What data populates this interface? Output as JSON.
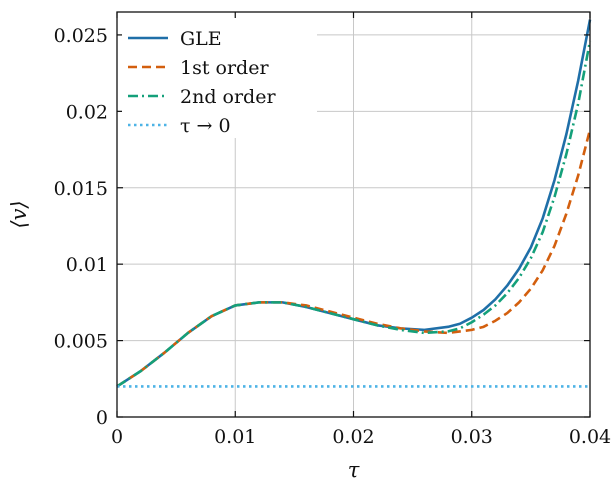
{
  "chart_data": {
    "type": "line",
    "xlabel": "τ",
    "ylabel": "⟨v⟩",
    "xlim": [
      0,
      0.04
    ],
    "ylim": [
      0,
      0.0265
    ],
    "grid": true,
    "legend_placement": "top-left",
    "x_ticks": [
      {
        "value": 0,
        "label": "0"
      },
      {
        "value": 0.01,
        "label": "0.01"
      },
      {
        "value": 0.02,
        "label": "0.02"
      },
      {
        "value": 0.03,
        "label": "0.03"
      },
      {
        "value": 0.04,
        "label": "0.04"
      }
    ],
    "y_ticks": [
      {
        "value": 0,
        "label": "0"
      },
      {
        "value": 0.005,
        "label": "0.005"
      },
      {
        "value": 0.01,
        "label": "0.01"
      },
      {
        "value": 0.015,
        "label": "0.015"
      },
      {
        "value": 0.02,
        "label": "0.02"
      },
      {
        "value": 0.025,
        "label": "0.025"
      }
    ],
    "series": [
      {
        "name": "GLE",
        "color": "#1f6fa8",
        "dash": "solid",
        "x": [
          0,
          0.002,
          0.004,
          0.006,
          0.008,
          0.01,
          0.012,
          0.014,
          0.016,
          0.018,
          0.02,
          0.022,
          0.024,
          0.026,
          0.028,
          0.029,
          0.03,
          0.031,
          0.032,
          0.033,
          0.034,
          0.035,
          0.036,
          0.037,
          0.038,
          0.039,
          0.04
        ],
        "y": [
          0.002,
          0.003,
          0.0042,
          0.0055,
          0.0066,
          0.0073,
          0.0075,
          0.0075,
          0.0072,
          0.0068,
          0.0064,
          0.006,
          0.0058,
          0.0057,
          0.0059,
          0.0061,
          0.0065,
          0.007,
          0.0077,
          0.0086,
          0.0097,
          0.0111,
          0.013,
          0.0155,
          0.0185,
          0.022,
          0.026
        ]
      },
      {
        "name": "1st order",
        "color": "#d35f0e",
        "dash": "dashed",
        "x": [
          0,
          0.002,
          0.004,
          0.006,
          0.008,
          0.01,
          0.012,
          0.014,
          0.016,
          0.018,
          0.02,
          0.022,
          0.024,
          0.026,
          0.028,
          0.029,
          0.03,
          0.031,
          0.032,
          0.033,
          0.034,
          0.035,
          0.036,
          0.037,
          0.038,
          0.039,
          0.04
        ],
        "y": [
          0.002,
          0.003,
          0.0042,
          0.0055,
          0.0066,
          0.0073,
          0.0075,
          0.0075,
          0.0073,
          0.0069,
          0.0065,
          0.0061,
          0.0058,
          0.0056,
          0.0055,
          0.0056,
          0.0057,
          0.0059,
          0.0063,
          0.0068,
          0.0075,
          0.0084,
          0.0096,
          0.0112,
          0.0133,
          0.0158,
          0.0188
        ]
      },
      {
        "name": "2nd order",
        "color": "#14a07a",
        "dash": "dashdot",
        "x": [
          0,
          0.002,
          0.004,
          0.006,
          0.008,
          0.01,
          0.012,
          0.014,
          0.016,
          0.018,
          0.02,
          0.022,
          0.024,
          0.026,
          0.028,
          0.029,
          0.03,
          0.031,
          0.032,
          0.033,
          0.034,
          0.035,
          0.036,
          0.037,
          0.038,
          0.039,
          0.04
        ],
        "y": [
          0.002,
          0.003,
          0.0042,
          0.0055,
          0.0066,
          0.0073,
          0.0075,
          0.0075,
          0.0072,
          0.0068,
          0.0064,
          0.006,
          0.0057,
          0.0055,
          0.0056,
          0.0058,
          0.0062,
          0.0067,
          0.0073,
          0.0081,
          0.0091,
          0.0104,
          0.0121,
          0.0144,
          0.0172,
          0.0205,
          0.0246
        ]
      },
      {
        "name": "τ → 0",
        "color": "#4db3e6",
        "dash": "dotted",
        "x": [
          0,
          0.04
        ],
        "y": [
          0.002,
          0.002
        ]
      }
    ]
  }
}
